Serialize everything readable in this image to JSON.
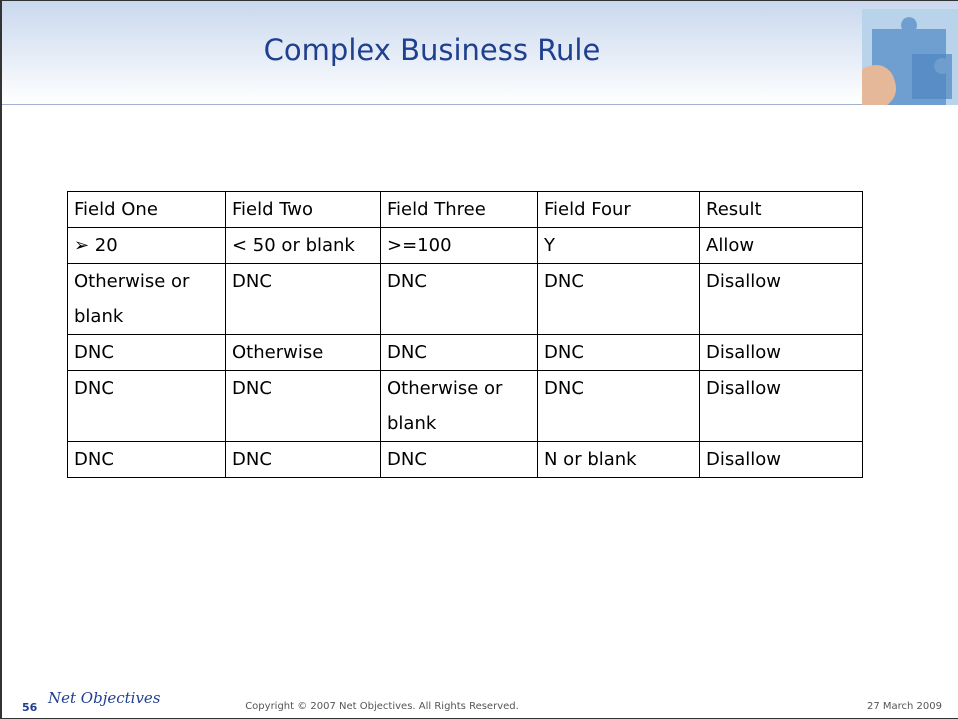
{
  "header": {
    "title": "Complex Business Rule"
  },
  "table": {
    "header": [
      "Field One",
      "Field Two",
      "Field Three",
      "Field Four",
      "Result"
    ],
    "rows": [
      [
        "➢  20",
        "< 50 or blank",
        ">=100",
        "Y",
        "Allow"
      ],
      [
        "Otherwise or blank",
        "DNC",
        "DNC",
        "DNC",
        "Disallow"
      ],
      [
        "DNC",
        "Otherwise",
        "DNC",
        "DNC",
        "Disallow"
      ],
      [
        "DNC",
        "DNC",
        "Otherwise or blank",
        "DNC",
        "Disallow"
      ],
      [
        "DNC",
        "DNC",
        "DNC",
        "N or blank",
        "Disallow"
      ]
    ]
  },
  "footer": {
    "page": "56",
    "logo": "Net Objectives",
    "copyright": "Copyright © 2007 Net Objectives. All Rights Reserved.",
    "date": "27 March 2009"
  }
}
